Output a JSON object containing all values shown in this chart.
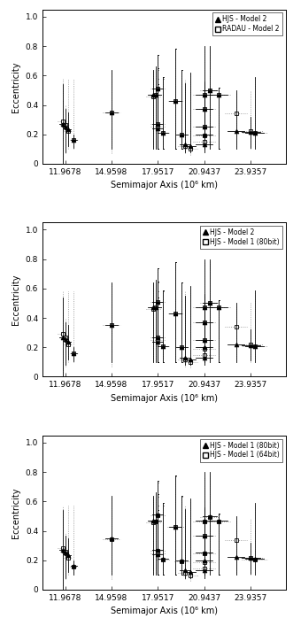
{
  "xlabel": "Semimajor Axis (10⁶ km)",
  "ylabel": "Eccentricity",
  "xlim": [
    10.5,
    26.2
  ],
  "ylim": [
    0,
    1.05
  ],
  "xticks": [
    11.9678,
    14.9598,
    17.9517,
    20.9437,
    23.9357
  ],
  "xtick_labels": [
    "11.9678",
    "14.9598",
    "17.9517",
    "20.9437",
    "23.9357"
  ],
  "yticks": [
    0,
    0.2,
    0.4,
    0.6,
    0.8,
    1.0
  ],
  "panels": [
    {
      "legend1": "HJS - Model 2",
      "legend2": "RADAU - Model 2"
    },
    {
      "legend1": "HJS - Model 2",
      "legend2": "HJS - Model 1 (80bit)"
    },
    {
      "legend1": "HJS - Model 1 (80bit)",
      "legend2": "HJS - Model 1 (64bit)"
    }
  ],
  "s1": {
    "x": [
      11.8,
      11.97,
      12.14,
      12.52,
      14.96,
      17.65,
      17.82,
      17.95,
      17.95,
      17.95,
      18.3,
      19.1,
      19.5,
      19.7,
      20.05,
      20.94,
      20.94,
      20.94,
      20.94,
      20.94,
      21.3,
      21.9,
      23.0,
      23.94,
      24.2
    ],
    "y": [
      0.27,
      0.255,
      0.235,
      0.16,
      0.35,
      0.47,
      0.47,
      0.51,
      0.27,
      0.24,
      0.21,
      0.43,
      0.2,
      0.13,
      0.12,
      0.47,
      0.37,
      0.25,
      0.2,
      0.13,
      0.5,
      0.47,
      0.22,
      0.215,
      0.21
    ],
    "xerr": [
      0.2,
      0.2,
      0.2,
      0.2,
      0.4,
      0.35,
      0.35,
      0.35,
      0.35,
      0.35,
      0.3,
      0.4,
      0.35,
      0.35,
      0.35,
      0.55,
      0.55,
      0.55,
      0.55,
      0.55,
      0.45,
      0.55,
      0.55,
      0.6,
      0.6
    ],
    "yerr_lo": [
      0.27,
      0.175,
      0.115,
      0.055,
      0.25,
      0.37,
      0.37,
      0.41,
      0.17,
      0.14,
      0.11,
      0.33,
      0.1,
      0.05,
      0.04,
      0.37,
      0.27,
      0.15,
      0.1,
      0.05,
      0.4,
      0.37,
      0.12,
      0.105,
      0.11
    ],
    "yerr_hi": [
      0.27,
      0.115,
      0.115,
      0.04,
      0.29,
      0.17,
      0.19,
      0.23,
      0.38,
      0.3,
      0.38,
      0.35,
      0.44,
      0.42,
      0.5,
      0.07,
      0.1,
      0.3,
      0.36,
      0.67,
      0.3,
      0.05,
      0.28,
      0.105,
      0.38
    ]
  },
  "s2": {
    "x": [
      11.8,
      11.97,
      12.14,
      12.52,
      14.96,
      17.65,
      17.82,
      17.95,
      17.95,
      17.95,
      18.3,
      19.1,
      19.5,
      19.7,
      20.05,
      20.94,
      20.94,
      20.94,
      20.94,
      20.94,
      21.3,
      21.9,
      23.0,
      23.94,
      24.2
    ],
    "y": [
      0.29,
      0.265,
      0.22,
      0.16,
      0.35,
      0.46,
      0.47,
      0.51,
      0.27,
      0.25,
      0.21,
      0.43,
      0.2,
      0.12,
      0.1,
      0.47,
      0.37,
      0.25,
      0.19,
      0.15,
      0.5,
      0.47,
      0.34,
      0.22,
      0.21
    ],
    "xerr": [
      0.3,
      0.3,
      0.3,
      0.25,
      0.55,
      0.45,
      0.45,
      0.45,
      0.45,
      0.45,
      0.4,
      0.5,
      0.45,
      0.45,
      0.45,
      0.7,
      0.7,
      0.7,
      0.7,
      0.7,
      0.6,
      0.7,
      0.7,
      0.8,
      0.8
    ],
    "yerr_lo": [
      0.29,
      0.195,
      0.12,
      0.06,
      0.28,
      0.36,
      0.37,
      0.41,
      0.17,
      0.15,
      0.11,
      0.33,
      0.1,
      0.05,
      0.04,
      0.37,
      0.27,
      0.15,
      0.09,
      0.07,
      0.4,
      0.37,
      0.24,
      0.12,
      0.11
    ],
    "yerr_hi": [
      0.29,
      0.135,
      0.36,
      0.42,
      0.29,
      0.18,
      0.17,
      0.23,
      0.37,
      0.33,
      0.37,
      0.35,
      0.44,
      0.46,
      0.52,
      0.07,
      0.11,
      0.29,
      0.35,
      0.63,
      0.28,
      0.05,
      0.14,
      0.28,
      0.38
    ]
  },
  "s3": {
    "x": [
      11.8,
      11.97,
      12.14,
      12.52,
      14.96,
      17.65,
      17.82,
      17.95,
      17.95,
      17.95,
      18.3,
      19.1,
      19.5,
      19.7,
      20.05,
      20.94,
      20.94,
      20.94,
      20.94,
      20.94,
      21.3,
      21.9,
      23.0,
      23.94,
      24.2
    ],
    "y": [
      0.285,
      0.26,
      0.215,
      0.155,
      0.345,
      0.455,
      0.465,
      0.505,
      0.265,
      0.245,
      0.205,
      0.425,
      0.195,
      0.115,
      0.095,
      0.465,
      0.365,
      0.245,
      0.185,
      0.145,
      0.495,
      0.465,
      0.335,
      0.215,
      0.205
    ],
    "xerr": [
      0.32,
      0.32,
      0.32,
      0.27,
      0.58,
      0.48,
      0.48,
      0.48,
      0.48,
      0.48,
      0.42,
      0.52,
      0.48,
      0.48,
      0.48,
      0.72,
      0.72,
      0.72,
      0.72,
      0.72,
      0.62,
      0.72,
      0.72,
      0.82,
      0.82
    ],
    "yerr_lo": [
      0.285,
      0.19,
      0.115,
      0.055,
      0.275,
      0.355,
      0.365,
      0.405,
      0.165,
      0.145,
      0.105,
      0.325,
      0.095,
      0.045,
      0.035,
      0.365,
      0.265,
      0.145,
      0.085,
      0.065,
      0.395,
      0.365,
      0.235,
      0.115,
      0.105
    ],
    "yerr_hi": [
      0.285,
      0.13,
      0.355,
      0.415,
      0.285,
      0.175,
      0.165,
      0.225,
      0.365,
      0.325,
      0.365,
      0.345,
      0.435,
      0.455,
      0.515,
      0.065,
      0.105,
      0.285,
      0.345,
      0.625,
      0.275,
      0.045,
      0.135,
      0.275,
      0.375
    ]
  }
}
